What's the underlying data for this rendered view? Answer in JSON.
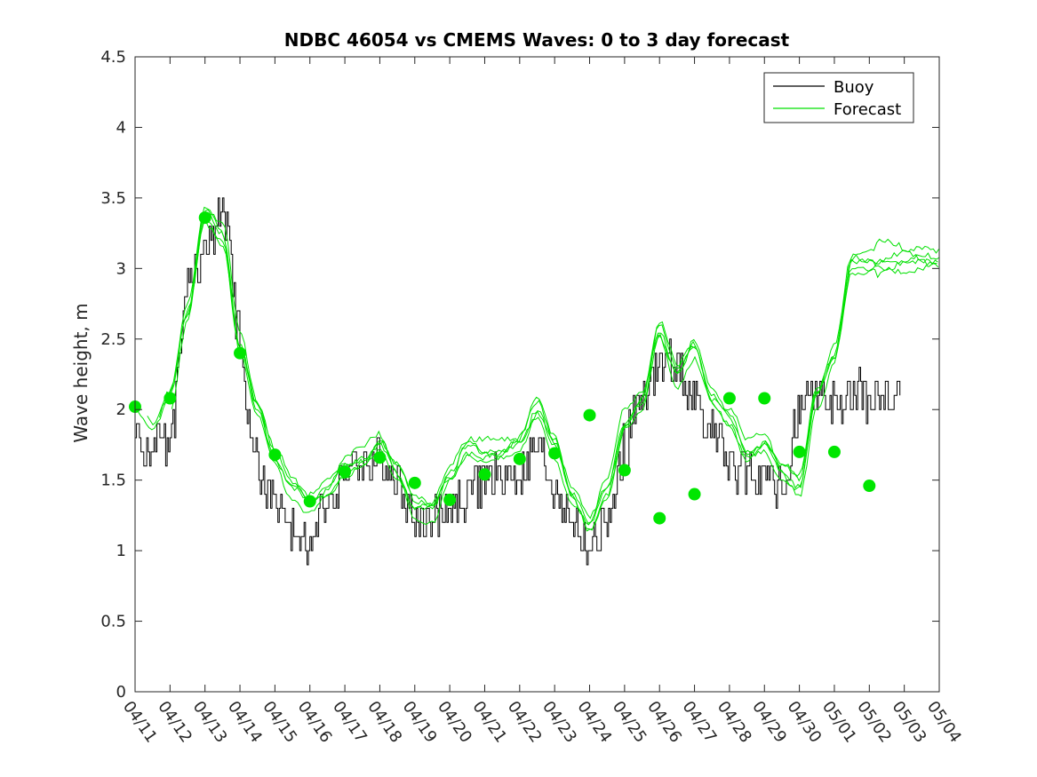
{
  "chart_data": {
    "type": "line",
    "title": "NDBC 46054 vs CMEMS Waves: 0 to 3 day forecast",
    "xlabel": "",
    "ylabel": "Wave height, m",
    "ylim": [
      0,
      4.5
    ],
    "yticks": [
      "0",
      "0.5",
      "1",
      "1.5",
      "2",
      "2.5",
      "3",
      "3.5",
      "4",
      "4.5"
    ],
    "xticks": [
      "04/11",
      "04/12",
      "04/13",
      "04/14",
      "04/15",
      "04/16",
      "04/17",
      "04/18",
      "04/19",
      "04/20",
      "04/21",
      "04/22",
      "04/23",
      "04/24",
      "04/25",
      "04/26",
      "04/27",
      "04/28",
      "04/29",
      "04/30",
      "05/01",
      "05/02",
      "05/03",
      "05/04"
    ],
    "grid": false,
    "legend_position": "top-right",
    "colors": {
      "buoy": "#000000",
      "forecast": "#00e000",
      "marker": "#00e600"
    },
    "series": [
      {
        "name": "Buoy",
        "x": [
          0,
          0.5,
          1,
          1.5,
          2,
          2.5,
          3,
          3.3,
          3.6,
          4,
          4.5,
          5,
          5.5,
          6,
          6.5,
          7,
          7.5,
          8,
          8.5,
          9,
          9.5,
          10,
          10.5,
          11,
          11.5,
          12,
          12.5,
          13,
          13.5,
          14,
          14.5,
          15,
          15.5,
          16,
          16.5,
          17,
          17.5,
          18,
          18.5,
          19,
          19.5,
          20,
          20.5,
          21,
          21.5,
          22,
          22.5,
          23
        ],
        "y": [
          1.8,
          1.7,
          1.8,
          2.9,
          3.1,
          3.4,
          2.5,
          1.9,
          1.5,
          1.35,
          1.1,
          1.05,
          1.35,
          1.55,
          1.6,
          1.65,
          1.5,
          1.2,
          1.2,
          1.3,
          1.4,
          1.5,
          1.5,
          1.55,
          1.7,
          1.45,
          1.2,
          1.0,
          1.2,
          1.75,
          2.1,
          2.3,
          2.35,
          2.05,
          1.85,
          1.6,
          1.6,
          1.5,
          1.4,
          2.0,
          2.1,
          2.0,
          2.1,
          2.1,
          2.1,
          2.1,
          2.1,
          2.1
        ]
      },
      {
        "name": "Forecast",
        "x": [
          0,
          0.5,
          1,
          1.5,
          2,
          2.5,
          3,
          3.5,
          4,
          4.5,
          5,
          5.5,
          6,
          6.5,
          7,
          7.5,
          8,
          8.5,
          9,
          9.5,
          10,
          10.5,
          11,
          11.5,
          12,
          12.5,
          13,
          13.5,
          14,
          14.5,
          15,
          15.5,
          16,
          16.5,
          17,
          17.5,
          18,
          18.5,
          19,
          19.5,
          20,
          20.5,
          21,
          21.5,
          22,
          22.5,
          23
        ],
        "y": [
          2.0,
          1.85,
          2.1,
          2.7,
          3.4,
          3.25,
          2.45,
          2.0,
          1.65,
          1.45,
          1.35,
          1.45,
          1.6,
          1.65,
          1.75,
          1.55,
          1.3,
          1.3,
          1.55,
          1.75,
          1.7,
          1.7,
          1.75,
          2.0,
          1.75,
          1.4,
          1.2,
          1.45,
          1.9,
          2.05,
          2.55,
          2.25,
          2.45,
          2.1,
          1.95,
          1.7,
          1.75,
          1.55,
          1.45,
          2.1,
          2.4,
          3.05,
          3.05,
          3.05,
          3.05,
          3.05,
          3.05
        ]
      },
      {
        "name": "",
        "type": "scatter",
        "x": [
          0,
          1,
          2,
          3,
          4,
          5,
          6,
          7,
          8,
          9,
          10,
          11,
          12,
          13,
          14,
          15,
          16,
          17,
          18,
          19,
          20,
          21
        ],
        "y": [
          2.02,
          2.08,
          3.36,
          2.4,
          1.68,
          1.35,
          1.56,
          1.66,
          1.48,
          1.36,
          1.54,
          1.65,
          1.69,
          1.96,
          1.57,
          1.23,
          1.4,
          2.08,
          2.08,
          1.7,
          1.7,
          1.46
        ]
      }
    ]
  }
}
